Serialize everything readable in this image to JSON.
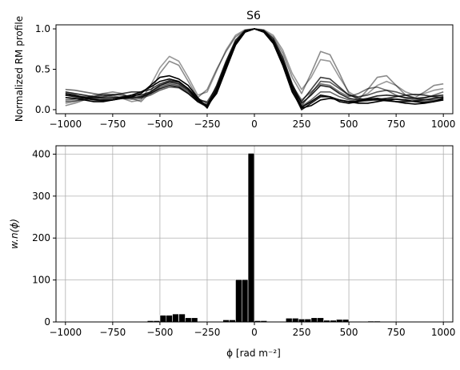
{
  "chart_data": [
    {
      "type": "line",
      "title": "S6",
      "xlabel": "",
      "ylabel": "Normalized RM profile",
      "xlim": [
        -1050,
        1050
      ],
      "ylim": [
        -0.05,
        1.05
      ],
      "x_ticks": [
        -1000,
        -750,
        -500,
        -250,
        0,
        250,
        500,
        750,
        1000
      ],
      "x_tick_labels": [
        "−1000",
        "−750",
        "−500",
        "−250",
        "0",
        "250",
        "500",
        "750",
        "1000"
      ],
      "y_ticks": [
        0.0,
        0.5,
        1.0
      ],
      "y_tick_labels": [
        "0.0",
        "0.5",
        "1.0"
      ],
      "grid": false,
      "x": [
        -1000,
        -950,
        -900,
        -850,
        -800,
        -750,
        -700,
        -650,
        -600,
        -550,
        -500,
        -450,
        -400,
        -350,
        -300,
        -250,
        -200,
        -150,
        -100,
        -50,
        0,
        50,
        100,
        150,
        200,
        250,
        300,
        350,
        400,
        450,
        500,
        550,
        600,
        650,
        700,
        750,
        800,
        850,
        900,
        950,
        1000
      ],
      "series": [
        {
          "color": "#000000",
          "opacity": 1.0,
          "values": [
            0.2,
            0.18,
            0.15,
            0.13,
            0.12,
            0.12,
            0.14,
            0.16,
            0.2,
            0.3,
            0.4,
            0.42,
            0.38,
            0.3,
            0.15,
            0.02,
            0.25,
            0.55,
            0.82,
            0.97,
            1.0,
            0.97,
            0.85,
            0.6,
            0.28,
            0.03,
            0.1,
            0.18,
            0.16,
            0.1,
            0.08,
            0.1,
            0.13,
            0.14,
            0.12,
            0.1,
            0.08,
            0.07,
            0.08,
            0.1,
            0.12
          ]
        },
        {
          "color": "#000000",
          "opacity": 1.0,
          "values": [
            0.15,
            0.14,
            0.12,
            0.1,
            0.1,
            0.12,
            0.15,
            0.18,
            0.22,
            0.28,
            0.35,
            0.38,
            0.35,
            0.26,
            0.12,
            0.05,
            0.2,
            0.5,
            0.8,
            0.96,
            1.0,
            0.96,
            0.82,
            0.55,
            0.22,
            0.02,
            0.05,
            0.12,
            0.14,
            0.12,
            0.1,
            0.08,
            0.08,
            0.1,
            0.12,
            0.13,
            0.12,
            0.1,
            0.09,
            0.1,
            0.14
          ]
        },
        {
          "color": "#000000",
          "opacity": 0.85,
          "values": [
            0.22,
            0.2,
            0.18,
            0.16,
            0.14,
            0.14,
            0.16,
            0.18,
            0.18,
            0.22,
            0.3,
            0.34,
            0.32,
            0.24,
            0.1,
            0.06,
            0.3,
            0.6,
            0.86,
            0.98,
            1.0,
            0.98,
            0.88,
            0.65,
            0.32,
            0.08,
            0.18,
            0.3,
            0.28,
            0.2,
            0.14,
            0.12,
            0.14,
            0.17,
            0.18,
            0.17,
            0.15,
            0.14,
            0.15,
            0.17,
            0.18
          ]
        },
        {
          "color": "#000000",
          "opacity": 0.75,
          "values": [
            0.18,
            0.17,
            0.16,
            0.15,
            0.16,
            0.18,
            0.2,
            0.22,
            0.22,
            0.25,
            0.32,
            0.36,
            0.34,
            0.26,
            0.14,
            0.08,
            0.22,
            0.52,
            0.8,
            0.96,
            1.0,
            0.96,
            0.82,
            0.58,
            0.26,
            0.1,
            0.25,
            0.4,
            0.38,
            0.28,
            0.18,
            0.14,
            0.12,
            0.12,
            0.14,
            0.16,
            0.18,
            0.19,
            0.18,
            0.16,
            0.15
          ]
        },
        {
          "color": "#000000",
          "opacity": 0.65,
          "values": [
            0.12,
            0.13,
            0.14,
            0.16,
            0.18,
            0.19,
            0.18,
            0.16,
            0.15,
            0.2,
            0.28,
            0.32,
            0.3,
            0.22,
            0.12,
            0.1,
            0.28,
            0.58,
            0.84,
            0.97,
            1.0,
            0.97,
            0.86,
            0.62,
            0.3,
            0.05,
            0.2,
            0.35,
            0.34,
            0.26,
            0.18,
            0.16,
            0.18,
            0.22,
            0.24,
            0.22,
            0.18,
            0.14,
            0.12,
            0.12,
            0.14
          ]
        },
        {
          "color": "#000000",
          "opacity": 0.45,
          "values": [
            0.05,
            0.08,
            0.12,
            0.16,
            0.2,
            0.22,
            0.2,
            0.14,
            0.1,
            0.22,
            0.45,
            0.6,
            0.55,
            0.35,
            0.15,
            0.25,
            0.5,
            0.72,
            0.9,
            0.98,
            1.0,
            0.98,
            0.9,
            0.7,
            0.4,
            0.2,
            0.45,
            0.72,
            0.68,
            0.45,
            0.2,
            0.12,
            0.25,
            0.4,
            0.42,
            0.3,
            0.18,
            0.15,
            0.22,
            0.3,
            0.32
          ]
        },
        {
          "color": "#000000",
          "opacity": 0.4,
          "values": [
            0.08,
            0.1,
            0.14,
            0.18,
            0.2,
            0.18,
            0.14,
            0.1,
            0.12,
            0.3,
            0.52,
            0.66,
            0.6,
            0.4,
            0.18,
            0.22,
            0.48,
            0.74,
            0.92,
            0.99,
            1.0,
            0.99,
            0.92,
            0.74,
            0.45,
            0.25,
            0.4,
            0.62,
            0.6,
            0.4,
            0.22,
            0.15,
            0.2,
            0.3,
            0.35,
            0.3,
            0.22,
            0.18,
            0.2,
            0.24,
            0.26
          ]
        },
        {
          "color": "#000000",
          "opacity": 0.55,
          "values": [
            0.25,
            0.24,
            0.22,
            0.2,
            0.18,
            0.16,
            0.15,
            0.15,
            0.16,
            0.22,
            0.3,
            0.35,
            0.34,
            0.26,
            0.14,
            0.04,
            0.24,
            0.55,
            0.82,
            0.97,
            1.0,
            0.97,
            0.84,
            0.6,
            0.3,
            0.12,
            0.22,
            0.32,
            0.3,
            0.22,
            0.16,
            0.2,
            0.26,
            0.28,
            0.24,
            0.18,
            0.14,
            0.12,
            0.14,
            0.18,
            0.22
          ]
        },
        {
          "color": "#000000",
          "opacity": 0.6,
          "values": [
            0.1,
            0.11,
            0.12,
            0.14,
            0.15,
            0.15,
            0.14,
            0.13,
            0.14,
            0.18,
            0.24,
            0.28,
            0.27,
            0.2,
            0.1,
            0.03,
            0.22,
            0.52,
            0.8,
            0.96,
            1.0,
            0.96,
            0.83,
            0.58,
            0.26,
            0.04,
            0.12,
            0.22,
            0.22,
            0.16,
            0.12,
            0.1,
            0.11,
            0.13,
            0.14,
            0.13,
            0.11,
            0.1,
            0.1,
            0.11,
            0.12
          ]
        },
        {
          "color": "#000000",
          "opacity": 0.9,
          "values": [
            0.18,
            0.16,
            0.14,
            0.12,
            0.11,
            0.12,
            0.14,
            0.15,
            0.16,
            0.2,
            0.26,
            0.3,
            0.28,
            0.2,
            0.1,
            0.04,
            0.26,
            0.56,
            0.83,
            0.97,
            1.0,
            0.97,
            0.84,
            0.58,
            0.24,
            0.0,
            0.08,
            0.16,
            0.16,
            0.12,
            0.1,
            0.11,
            0.12,
            0.12,
            0.11,
            0.1,
            0.1,
            0.11,
            0.12,
            0.14,
            0.16
          ]
        }
      ]
    },
    {
      "type": "bar",
      "title": "",
      "xlabel": "ϕ [rad m⁻²]",
      "ylabel": "w.n(ϕ)",
      "xlim": [
        -1050,
        1050
      ],
      "ylim": [
        0,
        420
      ],
      "x_ticks": [
        -1000,
        -750,
        -500,
        -250,
        0,
        250,
        500,
        750,
        1000
      ],
      "x_tick_labels": [
        "−1000",
        "−750",
        "−500",
        "−250",
        "0",
        "250",
        "500",
        "750",
        "1000"
      ],
      "y_ticks": [
        0,
        100,
        200,
        300,
        400
      ],
      "y_tick_labels": [
        "0",
        "100",
        "200",
        "300",
        "400"
      ],
      "grid": true,
      "bar_color": "#000000",
      "bar_width": 33.3,
      "bar_centers": [
        -983,
        -950,
        -917,
        -883,
        -850,
        -817,
        -783,
        -750,
        -717,
        -683,
        -650,
        -617,
        -583,
        -550,
        -517,
        -483,
        -450,
        -417,
        -383,
        -350,
        -317,
        -283,
        -250,
        -217,
        -183,
        -150,
        -117,
        -83,
        -50,
        -17,
        17,
        50,
        83,
        117,
        150,
        183,
        217,
        250,
        283,
        317,
        350,
        383,
        417,
        450,
        483,
        517,
        550,
        583,
        617,
        650,
        683,
        717,
        750,
        783,
        817,
        850,
        883,
        917,
        950,
        983
      ],
      "values": [
        0.5,
        0.5,
        0.5,
        0.5,
        0.5,
        0.5,
        0.5,
        0.5,
        0.5,
        0.5,
        0.5,
        0.5,
        0.5,
        3,
        3,
        16,
        16,
        19,
        19,
        10,
        10,
        1,
        1,
        1,
        1,
        5,
        5,
        101,
        101,
        402,
        3,
        3,
        1,
        1,
        1,
        9,
        9,
        7,
        7,
        10,
        10,
        4,
        4,
        6,
        6,
        1,
        1,
        0.5,
        2,
        2,
        0.5,
        0.5,
        0.5,
        0.5,
        0.5,
        0.5,
        0.5,
        0.5,
        0.5,
        0.5
      ]
    }
  ]
}
